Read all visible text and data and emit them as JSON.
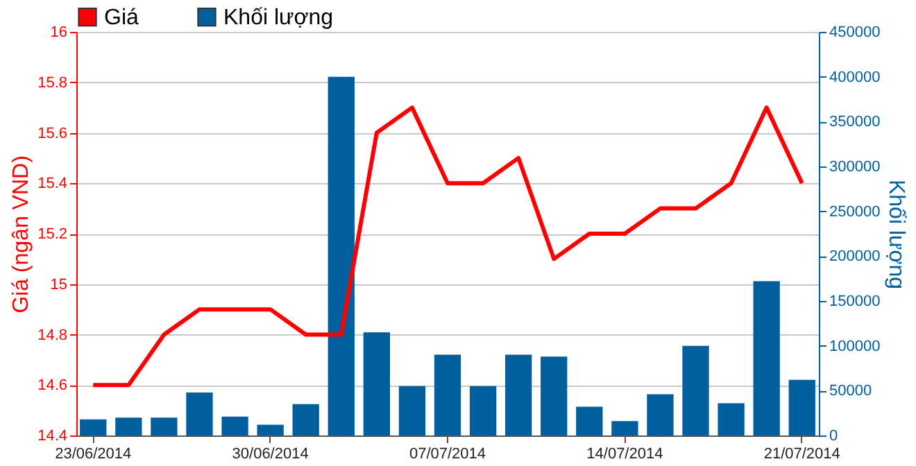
{
  "chart_data": {
    "type": "line",
    "ylabel": "Giá (ngân VND)",
    "y2label": "Khối lượng",
    "categories": [
      "23/06/2014",
      null,
      null,
      null,
      null,
      "30/06/2014",
      null,
      null,
      null,
      null,
      "07/07/2014",
      null,
      null,
      null,
      null,
      "14/07/2014",
      null,
      null,
      null,
      null,
      "21/07/2014"
    ],
    "series": [
      {
        "name": "Giá",
        "color": "#ff0000",
        "values": [
          14.6,
          14.6,
          14.8,
          14.9,
          14.9,
          14.9,
          14.8,
          14.8,
          15.6,
          15.7,
          15.4,
          15.4,
          15.5,
          15.1,
          15.2,
          15.2,
          15.3,
          15.3,
          15.4,
          15.7,
          15.4
        ]
      },
      {
        "name": "Khối lượng",
        "color": "#005f9e",
        "type": "bar",
        "axis": "y2",
        "values": [
          18000,
          20000,
          20000,
          48000,
          21000,
          12000,
          35000,
          400000,
          115000,
          55000,
          90000,
          55000,
          90000,
          88000,
          32000,
          16000,
          46000,
          100000,
          36000,
          172000,
          62000
        ]
      }
    ],
    "ylim": [
      14.4,
      16
    ],
    "yticks": [
      14.4,
      14.6,
      14.8,
      15,
      15.2,
      15.4,
      15.6,
      15.8,
      16
    ],
    "y2lim": [
      0,
      450000
    ],
    "y2ticks": [
      0,
      50000,
      100000,
      150000,
      200000,
      250000,
      300000,
      350000,
      400000,
      450000
    ],
    "grid": "y",
    "legend": "top left",
    "marker": "none",
    "line_style": "solid"
  }
}
